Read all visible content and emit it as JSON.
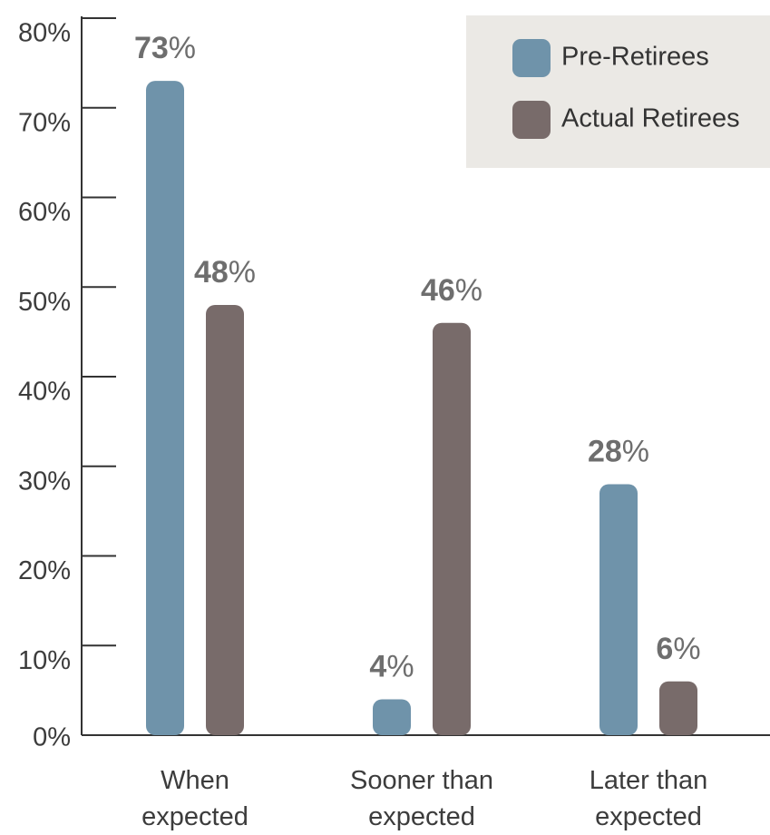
{
  "chart_data": {
    "type": "bar",
    "categories": [
      "When expected",
      "Sooner than expected",
      "Later than expected"
    ],
    "series": [
      {
        "name": "Pre-Retirees",
        "color": "#6f93aa",
        "values": [
          73,
          4,
          28
        ],
        "value_labels": [
          "73%",
          "4%",
          "28%"
        ]
      },
      {
        "name": "Actual Retirees",
        "color": "#786b6a",
        "values": [
          48,
          46,
          6
        ],
        "value_labels": [
          "48%",
          "46%",
          "6%"
        ]
      }
    ],
    "ylim": [
      0,
      80
    ],
    "yticks": [
      {
        "value": 0,
        "label": "0%"
      },
      {
        "value": 10,
        "label": "10%"
      },
      {
        "value": 20,
        "label": "20%"
      },
      {
        "value": 30,
        "label": "30%"
      },
      {
        "value": 40,
        "label": "40%"
      },
      {
        "value": 50,
        "label": "50%"
      },
      {
        "value": 60,
        "label": "60%"
      },
      {
        "value": 70,
        "label": "70%"
      },
      {
        "value": 80,
        "label": "80%"
      }
    ],
    "legend": "upper right"
  }
}
